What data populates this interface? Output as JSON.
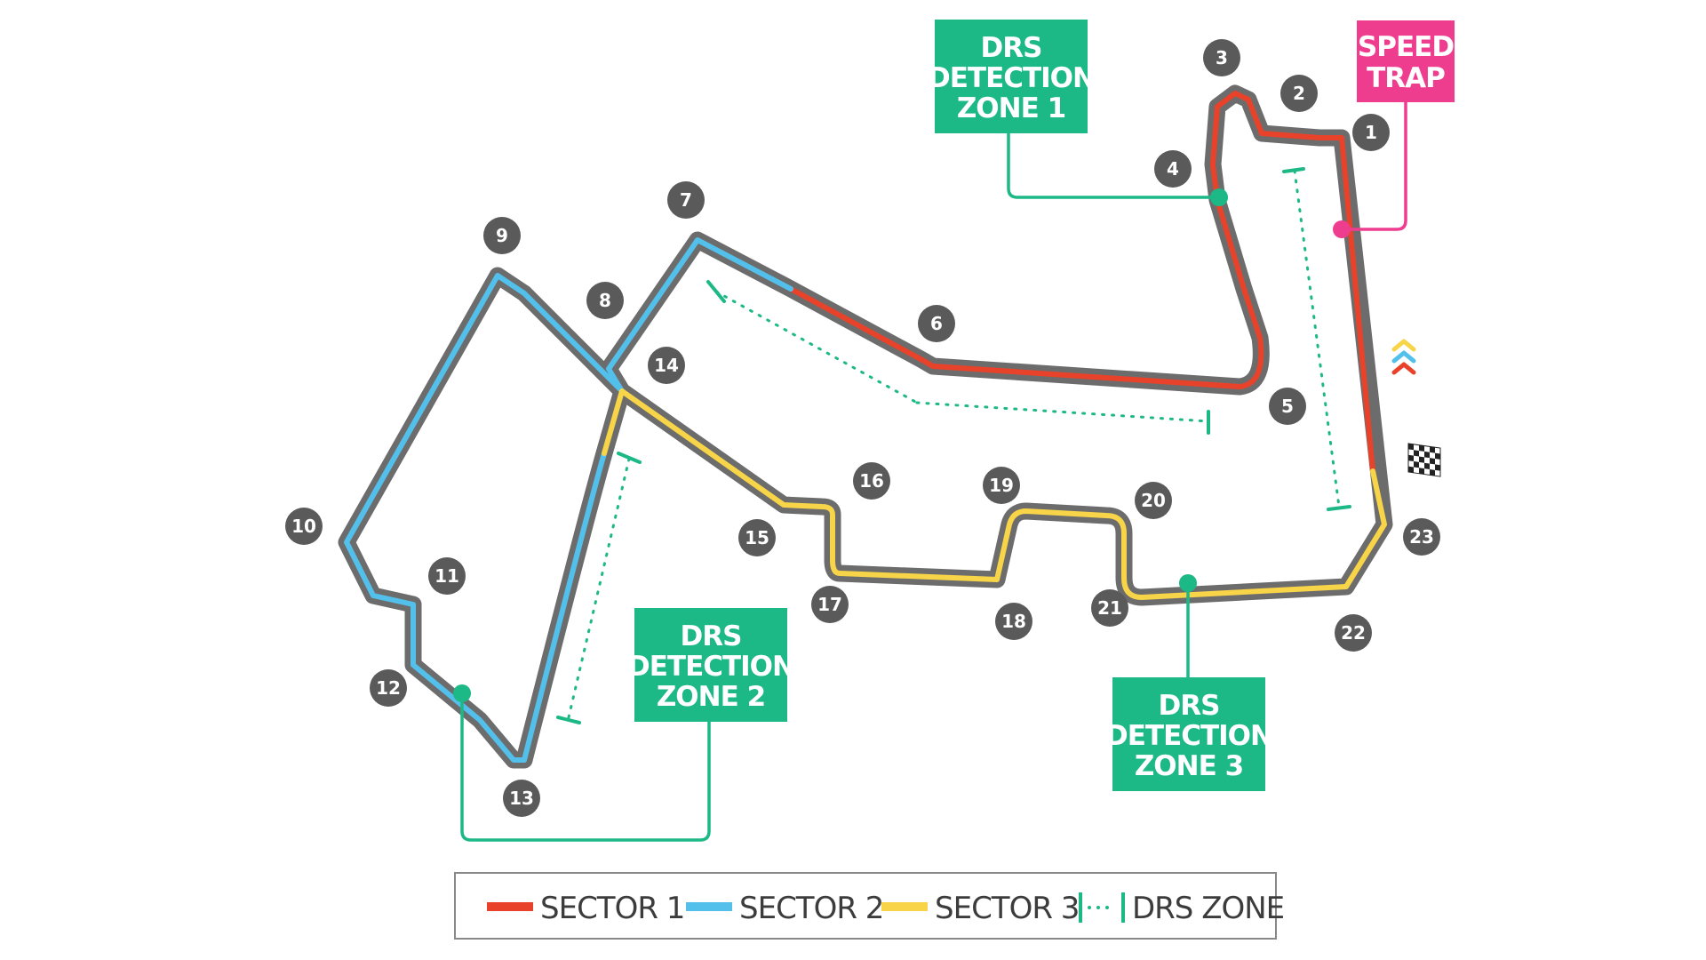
{
  "track": {
    "colors": {
      "track": "#6d6c6c",
      "sector_1": "#e8432a",
      "sector_2": "#53c0eb",
      "sector_3": "#f8d449",
      "drs": "#1cb886",
      "speed_trap": "#ee3d8f",
      "turn_badge": "#5b5a5a"
    },
    "turns": [
      "1",
      "2",
      "3",
      "4",
      "5",
      "6",
      "7",
      "8",
      "9",
      "10",
      "11",
      "12",
      "13",
      "14",
      "15",
      "16",
      "17",
      "18",
      "19",
      "20",
      "21",
      "22",
      "23"
    ],
    "icons": [
      "chevron-stack-icon",
      "checkered-flag-icon"
    ]
  },
  "labels": {
    "drs1": [
      "DRS",
      "DETECTION",
      "ZONE 1"
    ],
    "drs2": [
      "DRS",
      "DETECTION",
      "ZONE 2"
    ],
    "drs3": [
      "DRS",
      "DETECTION",
      "ZONE 3"
    ],
    "speed_trap": [
      "SPEED",
      "TRAP"
    ]
  },
  "legend": {
    "sector1": "SECTOR 1",
    "sector2": "SECTOR 2",
    "sector3": "SECTOR 3",
    "drs_zone": "DRS ZONE"
  }
}
